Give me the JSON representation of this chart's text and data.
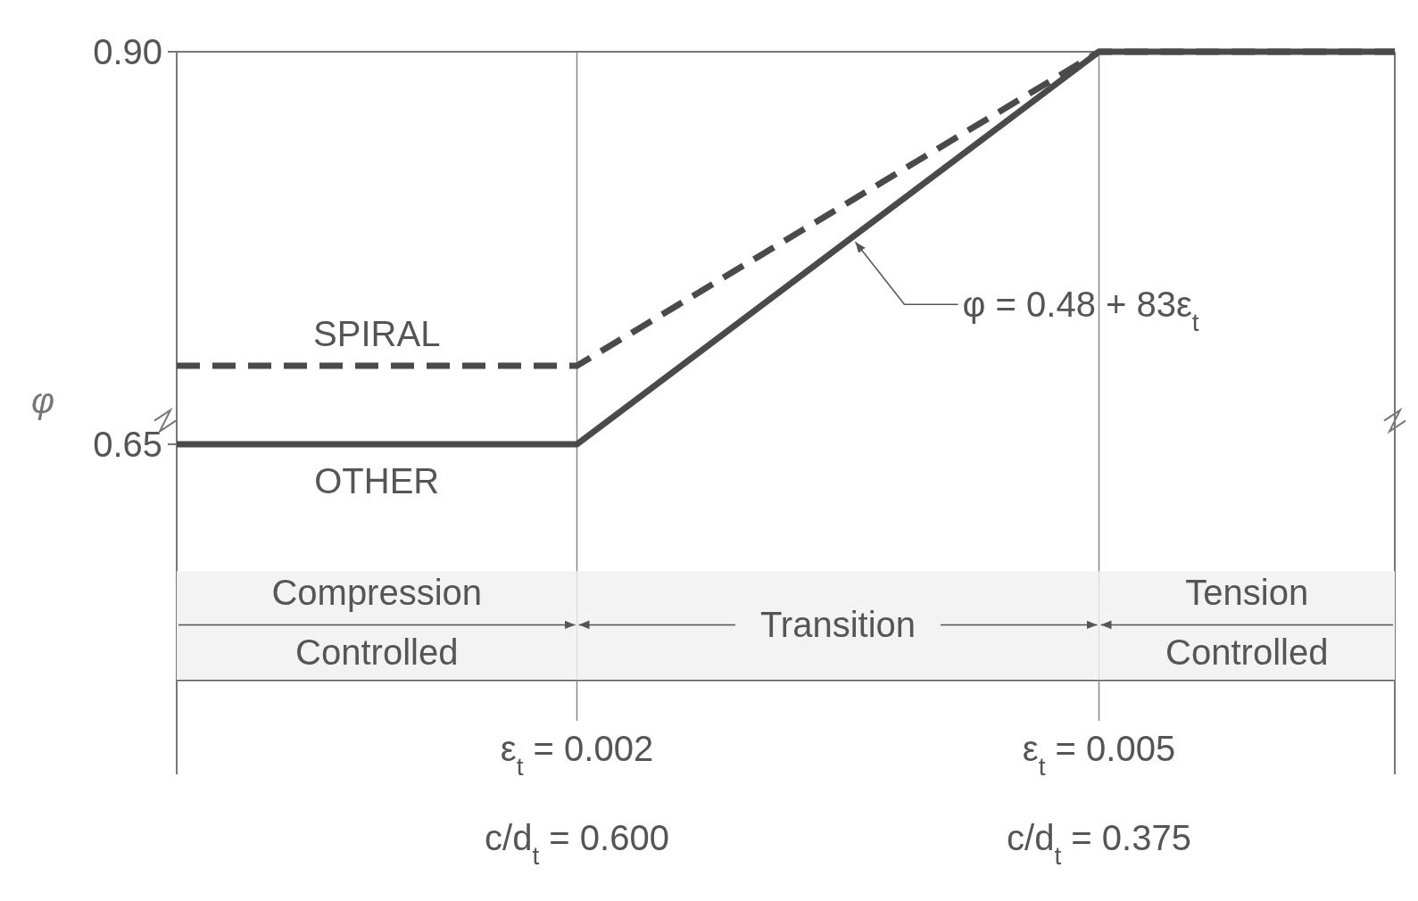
{
  "chart_data": {
    "type": "line",
    "ylabel": "φ",
    "xlim": [
      -0.0003,
      0.0067
    ],
    "ylim": [
      0.5,
      0.9
    ],
    "yticks": [
      {
        "value": 0.65,
        "label": "0.65"
      },
      {
        "value": 0.9,
        "label": "0.90"
      }
    ],
    "xticks": [
      {
        "value": 0.002,
        "label": "ε$_{t}$ = 0.002"
      },
      {
        "value": 0.005,
        "label": "ε$_{t}$ = 0.005"
      }
    ],
    "grid": "x",
    "series": [
      {
        "name": "SPIRAL",
        "color": "#4a4a4a",
        "line_style": "dashed",
        "x": [
          -0.0003,
          0.002,
          0.005,
          0.0067
        ],
        "values": [
          0.7,
          0.7,
          0.9,
          0.9
        ]
      },
      {
        "name": "OTHER",
        "color": "#4a4a4a",
        "line_style": "solid",
        "x": [
          -0.0003,
          0.002,
          0.005,
          0.0067
        ],
        "values": [
          0.65,
          0.65,
          0.9,
          0.9
        ]
      }
    ],
    "bands": [
      {
        "axis": "x",
        "from": -0.0003,
        "to": 0.002,
        "label": "Compression\nControlled",
        "color": "#f3f3f3"
      },
      {
        "axis": "x",
        "from": 0.002,
        "to": 0.005,
        "label": "Transition",
        "color": "#f3f3f3"
      },
      {
        "axis": "x",
        "from": 0.005,
        "to": 0.0067,
        "label": "Tension\nControlled",
        "color": "#f3f3f3"
      }
    ],
    "annotations": [
      {
        "text": "φ = 0.48 + 83ε$_{t}$",
        "x": 0.0036,
        "y": 0.7788
      },
      "c/d$_{t}$ = 0.600",
      "c/d$_{t}$ = 0.375"
    ]
  }
}
